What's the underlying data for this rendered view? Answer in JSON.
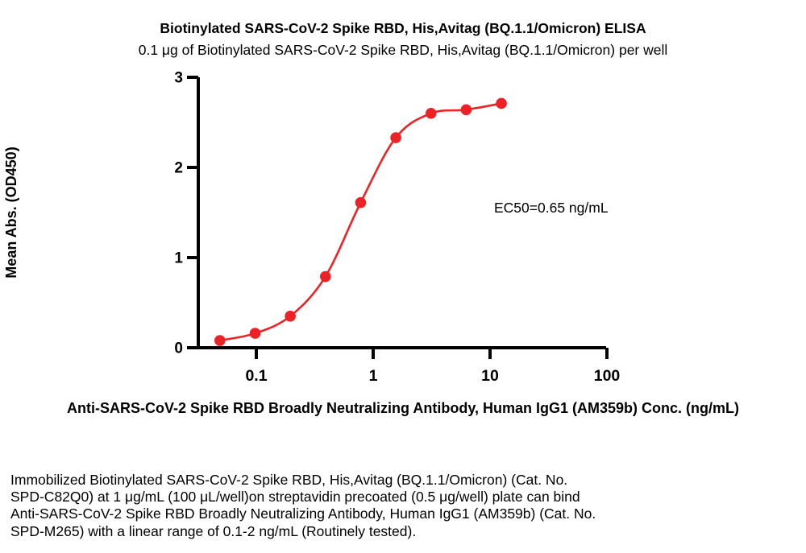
{
  "chart_data": {
    "type": "scatter",
    "title": "Biotinylated SARS-CoV-2 Spike RBD, His,Avitag (BQ.1.1/Omicron) ELISA",
    "subtitle": "0.1 μg of Biotinylated SARS-CoV-2 Spike RBD, His,Avitag (BQ.1.1/Omicron) per well",
    "xlabel": "Anti-SARS-CoV-2 Spike RBD Broadly Neutralizing Antibody, Human IgG1 (AM359b) Conc. (ng/mL)",
    "ylabel": "Mean Abs. (OD450)",
    "annotation": "EC50=0.65 ng/mL",
    "x_scale": "log10",
    "x_ticks": [
      "0.1",
      "1",
      "10",
      "100"
    ],
    "y_ticks": [
      "0",
      "1",
      "2",
      "3"
    ],
    "xlim": [
      0.0316,
      100
    ],
    "ylim": [
      0,
      3
    ],
    "grid": false,
    "legend": "none",
    "curve_style": "sigmoidal-4PL-fit",
    "series": [
      {
        "name": "Anti-SARS-CoV-2 Spike RBD Broadly Neutralizing Antibody, Human IgG1 (AM359b)",
        "color": "#ed2226",
        "marker": "circle",
        "x": [
          0.0488,
          0.0977,
          0.1953,
          0.3906,
          0.7813,
          1.5625,
          3.125,
          6.25,
          12.5
        ],
        "y": [
          0.08,
          0.16,
          0.35,
          0.79,
          1.61,
          2.33,
          2.6,
          2.64,
          2.71
        ]
      }
    ],
    "fit": {
      "model": "4PL",
      "ec50_ng_ml": 0.65
    }
  },
  "colors": {
    "series_red": "#ed2226",
    "axis_black": "#000000",
    "background": "#ffffff"
  },
  "description": {
    "lines": [
      "Immobilized Biotinylated SARS-CoV-2 Spike RBD, His,Avitag (BQ.1.1/Omicron) (Cat. No.",
      "SPD-C82Q0) at 1 μg/mL (100 μL/well)on streptavidin precoated (0.5 μg/well) plate can bind",
      "Anti-SARS-CoV-2 Spike RBD Broadly Neutralizing Antibody, Human IgG1 (AM359b) (Cat. No.",
      "SPD-M265) with a linear range of 0.1-2 ng/mL (Routinely tested)."
    ]
  }
}
